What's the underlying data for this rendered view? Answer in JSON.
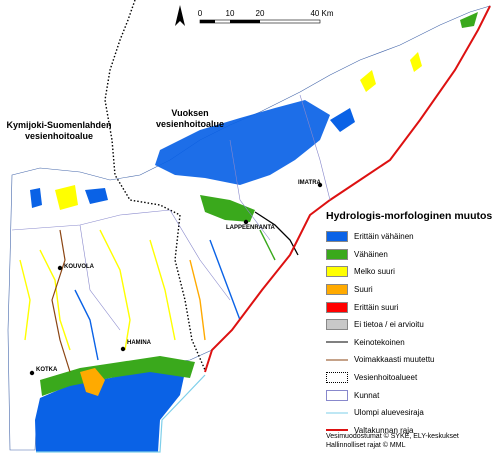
{
  "scale": {
    "ticks": [
      "0",
      "10",
      "20",
      "40 Km"
    ]
  },
  "north_arrow": "north-arrow-icon",
  "areas": [
    {
      "text": "Kymijoki-Suomenlahden\nvesienhoitoalue"
    },
    {
      "text": "Vuoksen\nvesienhoitoalue"
    }
  ],
  "towns": [
    "LAPPEENRANTA",
    "IMATRA",
    "KOUVOLA",
    "HAMINA",
    "KOTKA"
  ],
  "legend": {
    "title": "Hydrologis-morfologinen muutos",
    "items": [
      {
        "label": "Erittäin vähäinen",
        "kind": "fill",
        "color": "#0a62e6"
      },
      {
        "label": "Vähäinen",
        "kind": "fill",
        "color": "#3aa91c"
      },
      {
        "label": "Melko suuri",
        "kind": "fill",
        "color": "#ffff00"
      },
      {
        "label": "Suuri",
        "kind": "fill",
        "color": "#ffaa00"
      },
      {
        "label": "Erittäin suuri",
        "kind": "fill",
        "color": "#ff0000"
      },
      {
        "label": "Ei tietoa / ei arvioitu",
        "kind": "fill",
        "color": "#c8c8c8"
      },
      {
        "label": "Keinotekoinen",
        "kind": "line",
        "color": "#000000"
      },
      {
        "label": "Voimakkaasti muutettu",
        "kind": "line",
        "color": "#8b4513"
      },
      {
        "label": "Vesienhoitoalueet",
        "kind": "dotted-box",
        "color": "#000000"
      },
      {
        "label": "Kunnat",
        "kind": "outline-box",
        "color": "#8888cc"
      },
      {
        "label": "Ulompi aluevesiraja",
        "kind": "line",
        "color": "#7ecfea"
      },
      {
        "label": "Valtakunnan raja",
        "kind": "line",
        "color": "#dd1111"
      }
    ]
  },
  "credits": [
    "Vesimuodostumat © SYKE, ELY-keskukset",
    "Hallinnolliset rajat © MML"
  ]
}
